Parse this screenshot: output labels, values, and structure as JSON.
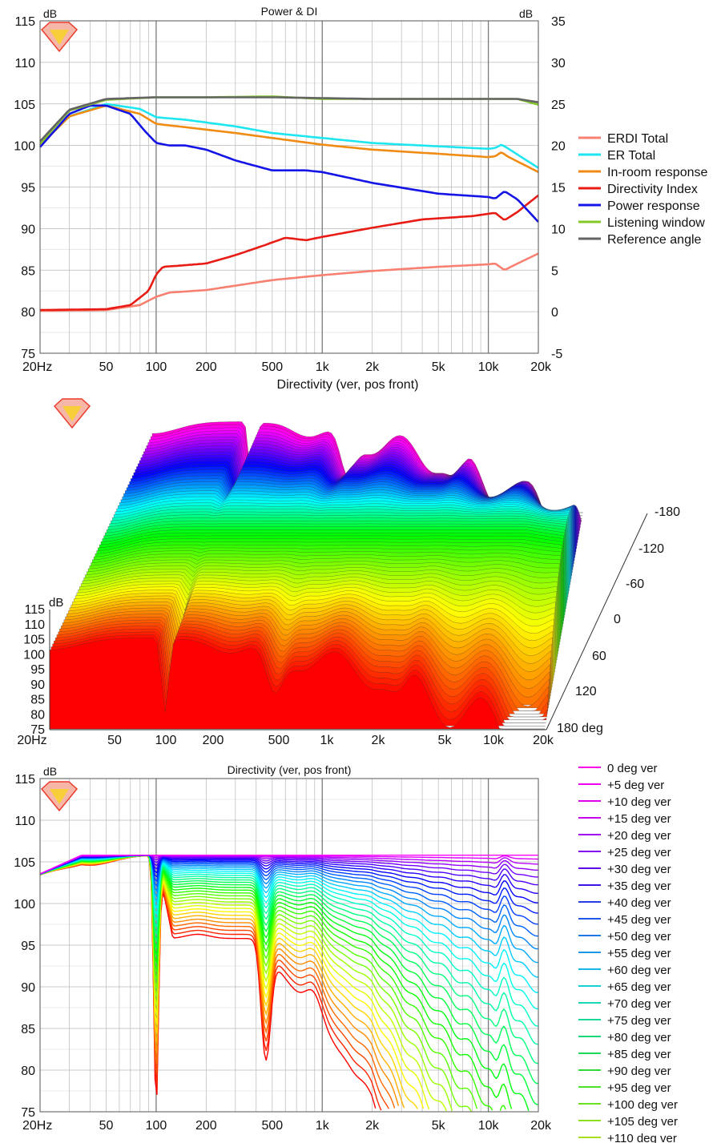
{
  "colors": {
    "grid": "#b8b8b8",
    "grid_major": "#7a7a7a",
    "axis": "#444444",
    "text": "#111111",
    "logo_red": "#e83c2c",
    "logo_yellow": "#f7cf3a"
  },
  "chart_data": [
    {
      "id": "power-di",
      "type": "line",
      "title": "Power & DI",
      "xlabel": "Directivity (ver, pos front)",
      "left_unit": "dB",
      "right_unit": "dB",
      "x_scale": "log",
      "xlim": [
        20,
        20000
      ],
      "ylim_left": [
        75,
        115
      ],
      "ylim_right": [
        -5,
        35
      ],
      "x_ticks": [
        {
          "v": 20,
          "label": "20Hz"
        },
        {
          "v": 50,
          "label": "50"
        },
        {
          "v": 100,
          "label": "100"
        },
        {
          "v": 200,
          "label": "200"
        },
        {
          "v": 500,
          "label": "500"
        },
        {
          "v": 1000,
          "label": "1k"
        },
        {
          "v": 2000,
          "label": "2k"
        },
        {
          "v": 5000,
          "label": "5k"
        },
        {
          "v": 10000,
          "label": "10k"
        },
        {
          "v": 20000,
          "label": "20k"
        }
      ],
      "y_ticks_left": [
        "75",
        "80",
        "85",
        "90",
        "95",
        "100",
        "105",
        "110",
        "115"
      ],
      "y_ticks_right": [
        "-5",
        "0",
        "5",
        "10",
        "15",
        "20",
        "25",
        "30",
        "35"
      ],
      "legend_position": "right",
      "series": [
        {
          "name": "ERDI Total",
          "color": "#f88070",
          "axis": "right",
          "points": [
            [
              20,
              0.1
            ],
            [
              50,
              0.2
            ],
            [
              80,
              0.8
            ],
            [
              100,
              1.8
            ],
            [
              120,
              2.3
            ],
            [
              200,
              2.6
            ],
            [
              500,
              3.8
            ],
            [
              1000,
              4.4
            ],
            [
              2000,
              4.9
            ],
            [
              5000,
              5.4
            ],
            [
              10000,
              5.7
            ],
            [
              11000,
              5.8
            ],
            [
              12500,
              5.0
            ],
            [
              15000,
              5.8
            ],
            [
              20000,
              7.0
            ]
          ]
        },
        {
          "name": "ER Total",
          "color": "#1ee6f0",
          "axis": "left",
          "points": [
            [
              20,
              100
            ],
            [
              30,
              103.5
            ],
            [
              50,
              105
            ],
            [
              80,
              104.4
            ],
            [
              100,
              103.4
            ],
            [
              150,
              103.1
            ],
            [
              300,
              102.3
            ],
            [
              500,
              101.5
            ],
            [
              1000,
              100.9
            ],
            [
              2000,
              100.3
            ],
            [
              5000,
              99.9
            ],
            [
              10000,
              99.6
            ],
            [
              11000,
              99.7
            ],
            [
              12000,
              100.1
            ],
            [
              13000,
              99.7
            ],
            [
              20000,
              97.3
            ]
          ]
        },
        {
          "name": "In-room response",
          "color": "#f08c14",
          "axis": "left",
          "points": [
            [
              20,
              100
            ],
            [
              30,
              103.5
            ],
            [
              50,
              104.8
            ],
            [
              80,
              103.8
            ],
            [
              100,
              102.6
            ],
            [
              150,
              102.2
            ],
            [
              300,
              101.5
            ],
            [
              500,
              100.9
            ],
            [
              1000,
              100.1
            ],
            [
              2000,
              99.5
            ],
            [
              5000,
              99.0
            ],
            [
              10000,
              98.6
            ],
            [
              11000,
              98.7
            ],
            [
              12000,
              99.2
            ],
            [
              13000,
              98.7
            ],
            [
              20000,
              96.8
            ]
          ]
        },
        {
          "name": "Directivity Index",
          "color": "#e81c14",
          "axis": "right",
          "points": [
            [
              20,
              0.2
            ],
            [
              50,
              0.3
            ],
            [
              70,
              0.8
            ],
            [
              90,
              2.5
            ],
            [
              100,
              4.5
            ],
            [
              110,
              5.4
            ],
            [
              130,
              5.5
            ],
            [
              200,
              5.8
            ],
            [
              300,
              6.8
            ],
            [
              450,
              8.0
            ],
            [
              600,
              8.9
            ],
            [
              800,
              8.6
            ],
            [
              1000,
              9.0
            ],
            [
              2000,
              10.1
            ],
            [
              4000,
              11.1
            ],
            [
              8000,
              11.5
            ],
            [
              11000,
              11.9
            ],
            [
              12500,
              11.0
            ],
            [
              15000,
              12.0
            ],
            [
              20000,
              14.0
            ]
          ]
        },
        {
          "name": "Power response",
          "color": "#1414e6",
          "axis": "left",
          "points": [
            [
              20,
              99.8
            ],
            [
              30,
              103.8
            ],
            [
              40,
              104.8
            ],
            [
              50,
              104.8
            ],
            [
              70,
              103.8
            ],
            [
              85,
              101.8
            ],
            [
              100,
              100.3
            ],
            [
              120,
              100
            ],
            [
              150,
              100
            ],
            [
              200,
              99.5
            ],
            [
              300,
              98.2
            ],
            [
              500,
              97.0
            ],
            [
              800,
              97.0
            ],
            [
              1000,
              96.8
            ],
            [
              2000,
              95.5
            ],
            [
              5000,
              94.2
            ],
            [
              10000,
              93.8
            ],
            [
              11000,
              93.6
            ],
            [
              12500,
              94.5
            ],
            [
              15000,
              93.5
            ],
            [
              20000,
              90.8
            ]
          ]
        },
        {
          "name": "Listening window",
          "color": "#84c828",
          "axis": "left",
          "points": [
            [
              20,
              100.2
            ],
            [
              30,
              104.2
            ],
            [
              50,
              105.5
            ],
            [
              100,
              105.8
            ],
            [
              200,
              105.8
            ],
            [
              500,
              105.9
            ],
            [
              1000,
              105.6
            ],
            [
              2000,
              105.6
            ],
            [
              5000,
              105.6
            ],
            [
              10000,
              105.6
            ],
            [
              15000,
              105.6
            ],
            [
              20000,
              104.9
            ]
          ]
        },
        {
          "name": "Reference angle",
          "color": "#646464",
          "axis": "left",
          "points": [
            [
              20,
              100.5
            ],
            [
              30,
              104.3
            ],
            [
              50,
              105.6
            ],
            [
              100,
              105.8
            ],
            [
              200,
              105.8
            ],
            [
              500,
              105.8
            ],
            [
              1000,
              105.7
            ],
            [
              2000,
              105.6
            ],
            [
              5000,
              105.6
            ],
            [
              10000,
              105.6
            ],
            [
              15000,
              105.6
            ],
            [
              20000,
              105.2
            ]
          ]
        }
      ]
    },
    {
      "id": "waterfall-3d",
      "type": "area",
      "projection": "3d-waterfall",
      "z_unit": "dB",
      "z_ticks": [
        "75",
        "80",
        "85",
        "90",
        "95",
        "100",
        "105",
        "110",
        "115"
      ],
      "x_ticks": [
        "20Hz",
        "50",
        "100",
        "200",
        "500",
        "1k",
        "2k",
        "5k",
        "10k",
        "20k"
      ],
      "depth_ticks": [
        "-180",
        "-120",
        "-60",
        "0",
        "60",
        "120",
        "180 deg"
      ],
      "depth_range_deg": [
        -180,
        180
      ],
      "colormap": "rainbow (red front → green → blue → magenta rear)"
    },
    {
      "id": "directivity-lines",
      "type": "line",
      "title": "Directivity (ver, pos front)",
      "left_unit": "dB",
      "x_scale": "log",
      "xlim": [
        20,
        20000
      ],
      "ylim": [
        75,
        115
      ],
      "x_ticks": [
        "20Hz",
        "50",
        "100",
        "200",
        "500",
        "1k",
        "2k",
        "5k",
        "10k",
        "20k"
      ],
      "y_ticks": [
        "75",
        "80",
        "85",
        "90",
        "95",
        "100",
        "105",
        "110",
        "115"
      ],
      "legend_position": "right",
      "series_names": [
        "0 deg ver",
        "+5 deg ver",
        "+10 deg ver",
        "+15 deg ver",
        "+20 deg ver",
        "+25 deg ver",
        "+30 deg ver",
        "+35 deg ver",
        "+40 deg ver",
        "+45 deg ver",
        "+50 deg ver",
        "+55 deg ver",
        "+60 deg ver",
        "+65 deg ver",
        "+70 deg ver",
        "+75 deg ver",
        "+80 deg ver",
        "+85 deg ver",
        "+90 deg ver",
        "+95 deg ver",
        "+100 deg ver",
        "+105 deg ver",
        "+110 deg ver"
      ],
      "series_colors": [
        "#ff00e6",
        "#ee00f0",
        "#e000f0",
        "#c800f0",
        "#a000ef",
        "#8200ed",
        "#5c00e8",
        "#3c14e6",
        "#283ce6",
        "#2258e8",
        "#1e78e8",
        "#1c98e6",
        "#18b8e6",
        "#18d0d8",
        "#18d8b8",
        "#18d89a",
        "#18d87a",
        "#1ed85a",
        "#30dc3c",
        "#4ee02a",
        "#6ce024",
        "#8ce020",
        "#a8e01c"
      ],
      "curve_labels": {
        "top_response_db": 106,
        "null_100hz_db": 75,
        "peak_180hz_db": 96.5,
        "null_460hz_db": 83,
        "peak_900hz_db": 97
      }
    }
  ]
}
